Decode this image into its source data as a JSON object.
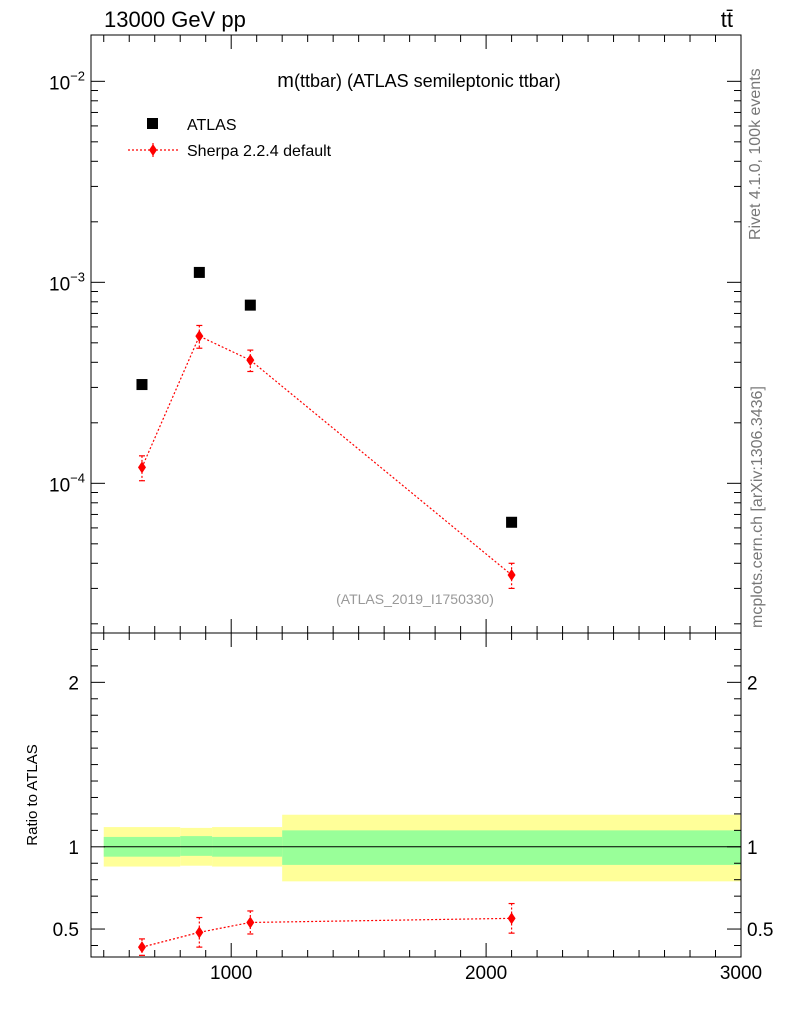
{
  "header": {
    "energy": "13000 GeV pp",
    "process": "tt̄"
  },
  "side_labels": {
    "rivet": "Rivet 4.1.0,  100k events",
    "mcplots": "mcplots.cern.ch [arXiv:1306.3436]"
  },
  "colors": {
    "data": "#000000",
    "mc": "#ff0000",
    "band_inner": "#99ff99",
    "band_outer": "#ffff99"
  },
  "chart_data": [
    {
      "type": "scatter",
      "title": "m(ttbar) (ATLAS semileptonic ttbar)",
      "title_prefix": "m",
      "title_rest": "(ttbar) (ATLAS semileptonic ttbar)",
      "analysis_id": "(ATLAS_2019_I1750330)",
      "yscale": "log",
      "xlim": [
        450,
        3000
      ],
      "ylim": [
        1.8e-05,
        0.017
      ],
      "y_ticks": [
        {
          "value": 0.01,
          "base": "10",
          "exp": "−2"
        },
        {
          "value": 0.001,
          "base": "10",
          "exp": "−3"
        },
        {
          "value": 0.0001,
          "base": "10",
          "exp": "−4"
        }
      ],
      "legend_position": "top-left",
      "series": [
        {
          "name": "ATLAS",
          "marker": "square",
          "x": [
            650,
            875,
            1075,
            2100
          ],
          "y": [
            0.00031,
            0.00112,
            0.00077,
            6.4e-05
          ]
        },
        {
          "name": "Sherpa 2.2.4 default",
          "marker": "diamond",
          "line": "dotted",
          "x": [
            650,
            875,
            1075,
            2100
          ],
          "y": [
            0.00012,
            0.00054,
            0.00041,
            3.5e-05
          ],
          "err_up": [
            1.7e-05,
            7e-05,
            5e-05,
            5e-06
          ],
          "err_down": [
            1.7e-05,
            7e-05,
            5e-05,
            5e-06
          ]
        }
      ]
    },
    {
      "type": "scatter",
      "ylabel": "Ratio to ATLAS",
      "xlim": [
        450,
        3000
      ],
      "ylim": [
        0.33,
        2.3
      ],
      "x_ticks": [
        "1000",
        "2000",
        "3000"
      ],
      "x_tick_values": [
        1000,
        2000,
        3000
      ],
      "y_ticks": [
        "0.5",
        "1",
        "2"
      ],
      "y_tick_values": [
        0.5,
        1,
        2
      ],
      "bands": [
        {
          "x0": 500,
          "x1": 800,
          "inner": [
            0.94,
            1.06
          ],
          "outer": [
            0.88,
            1.12
          ]
        },
        {
          "x0": 800,
          "x1": 925,
          "inner": [
            0.945,
            1.065
          ],
          "outer": [
            0.885,
            1.115
          ]
        },
        {
          "x0": 925,
          "x1": 1200,
          "inner": [
            0.94,
            1.06
          ],
          "outer": [
            0.88,
            1.12
          ]
        },
        {
          "x0": 1200,
          "x1": 3000,
          "inner": [
            0.89,
            1.1
          ],
          "outer": [
            0.79,
            1.195
          ]
        }
      ],
      "reference": 1,
      "series": [
        {
          "name": "Sherpa 2.2.4 default / ATLAS",
          "marker": "diamond",
          "line": "dotted",
          "x": [
            650,
            875,
            1075,
            2100
          ],
          "y": [
            0.39,
            0.48,
            0.54,
            0.565
          ],
          "err_up": [
            0.05,
            0.09,
            0.07,
            0.09
          ],
          "err_down": [
            0.05,
            0.09,
            0.07,
            0.09
          ]
        }
      ]
    }
  ]
}
